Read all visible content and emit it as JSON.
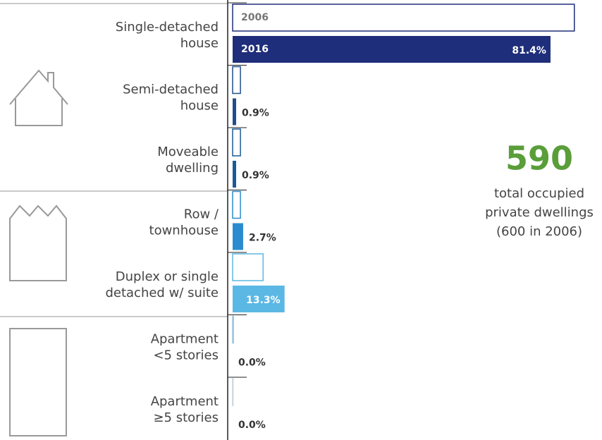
{
  "chart_data": {
    "type": "bar",
    "categories": [
      [
        "Single-detached",
        "house"
      ],
      [
        "Semi-detached",
        "house"
      ],
      [
        "Moveable",
        "dwelling"
      ],
      [
        "Row /",
        "townhouse"
      ],
      [
        "Duplex or single",
        "detached w/ suite"
      ],
      [
        "Apartment",
        "<5 stories"
      ],
      [
        "Apartment",
        "≥5 stories"
      ]
    ],
    "series": [
      {
        "name": "2006",
        "colors": [
          "#1f2e7a",
          "#1f4e8c",
          "#1a5a96",
          "#2a8ccf",
          "#5bb8e4",
          "#9cc3dd",
          "#c8d3dc"
        ],
        "values": [
          87.5,
          2.0,
          2.0,
          2.0,
          7.8,
          0.2,
          0.1
        ]
      },
      {
        "name": "2016",
        "colors": [
          "#1f2e7a",
          "#1f4e8c",
          "#1a5a96",
          "#2a8ccf",
          "#5bb8e4",
          "#9cc3dd",
          "#c8d3dc"
        ],
        "values": [
          81.4,
          0.9,
          0.9,
          2.7,
          13.3,
          0.0,
          0.0
        ],
        "value_labels": [
          "81.4%",
          "0.9%",
          "0.9%",
          "2.7%",
          "13.3%",
          "0.0%",
          "0.0%"
        ]
      }
    ],
    "annotation": {
      "headline": "590",
      "lines": [
        "total occupied",
        "private dwellings",
        "(600 in 2006)"
      ],
      "color": "#5a9e3a"
    }
  }
}
